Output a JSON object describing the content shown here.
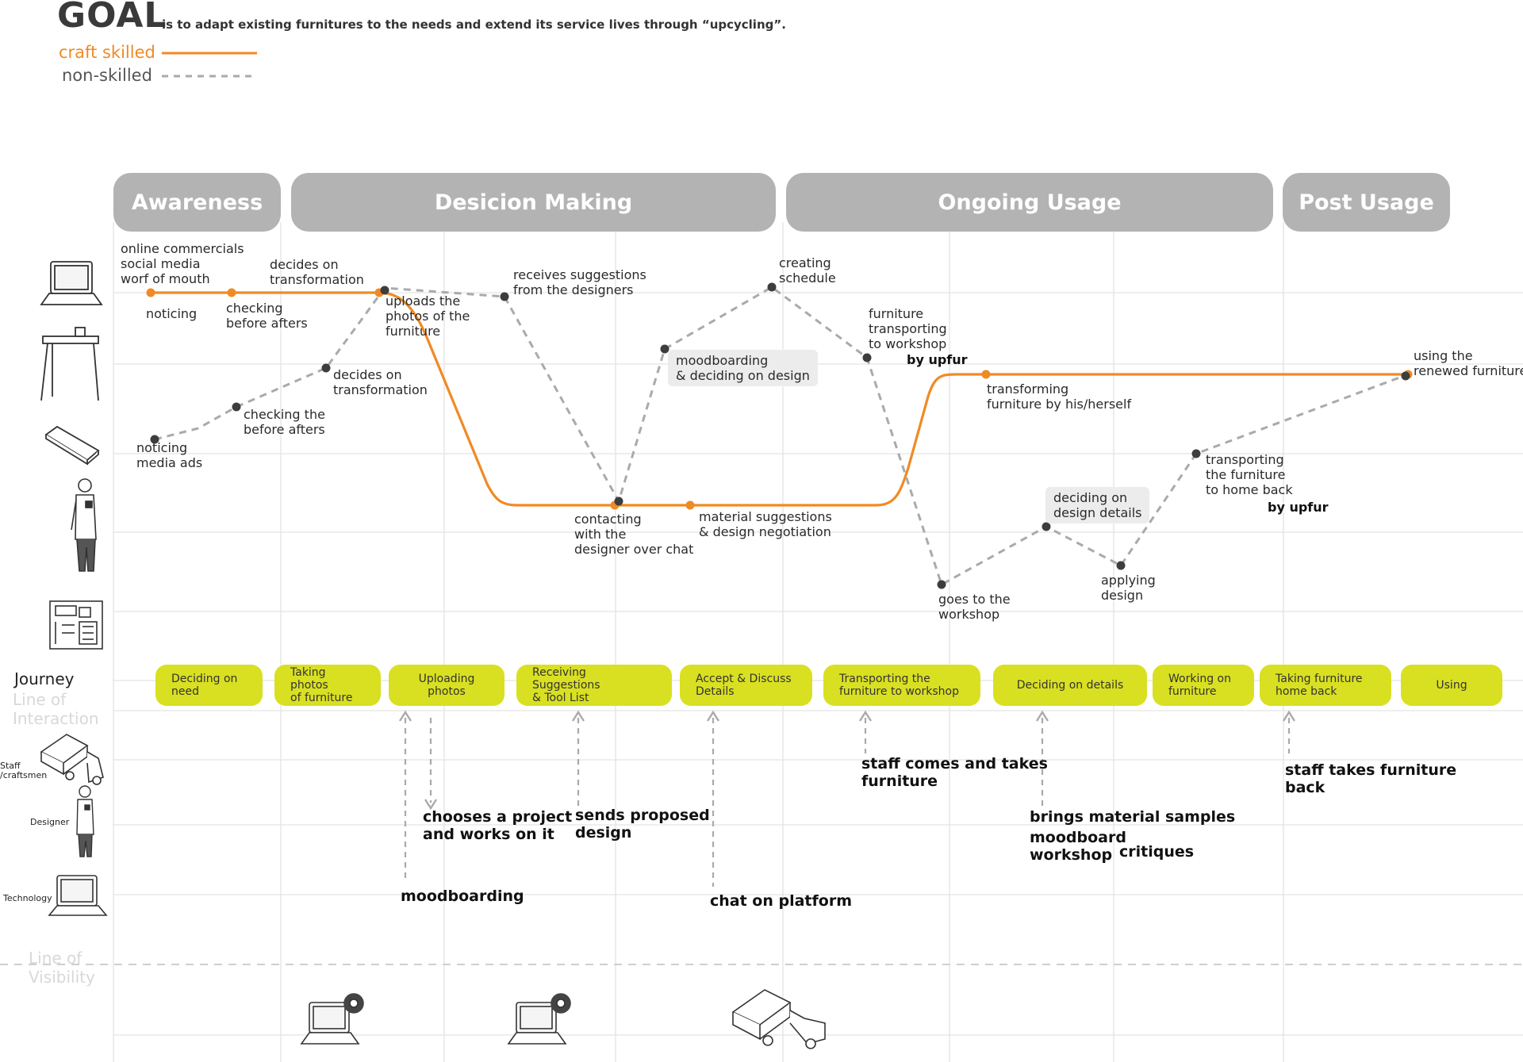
{
  "header": {
    "goal_word": "GOAL",
    "goal_text": "is to adapt existing furnitures to the needs and extend its service lives through “upcycling”.",
    "legend": {
      "craft_label": "craft skilled",
      "non_label": "non-skilled",
      "craft_color": "#f08a24",
      "non_color": "#aaaaaa"
    }
  },
  "phases": [
    "Awareness",
    "Desicion Making",
    "Ongoing Usage",
    "Post Usage"
  ],
  "journey": {
    "craft_labels": [
      "online commercials\nsocial media\nworf of mouth",
      "noticing",
      "checking\nbefore afters",
      "decides on\ntransformation",
      "uploads the\nphotos of the\nfurniture",
      "contacting\nwith the\ndesigner over chat",
      "material suggestions\n& design negotiation",
      "transforming\nfurniture by his/herself",
      "using the\nrenewed furniture"
    ],
    "non_labels": [
      "noticing\nmedia ads",
      "checking the\nbefore afters",
      "decides on\ntransformation",
      "receives suggestions\nfrom the designers",
      "moodboarding\n& deciding on design",
      "creating\nschedule",
      "furniture\ntransporting\nto workshop",
      "by upfur",
      "goes to the\nworkshop",
      "deciding on\ndesign details",
      "applying\ndesign",
      "transporting\nthe furniture\nto home back",
      "by upfur"
    ]
  },
  "lanes": {
    "journey": "Journey",
    "line_of_interaction": "Line of\nInteraction",
    "staff": "Staff\n/craftsmen",
    "designer": "Designer",
    "technology": "Technology",
    "line_of_visibility": "Line of\nVisibility"
  },
  "journey_steps": [
    "Deciding on\nneed",
    "Taking photos\nof furniture",
    "Uploading photos",
    "Receiving Suggestions\n& Tool List",
    "Accept & Discuss\nDetails",
    "Transporting the\nfurniture to workshop",
    "Deciding on details",
    "Working on\nfurniture",
    "Taking furniture\nhome back",
    "Using"
  ],
  "actions": [
    "staff comes and takes\nfurniture",
    "staff takes furniture\nback",
    "chooses a project\nand works on it",
    "sends proposed\ndesign",
    "brings material samples",
    "moodboard\nworkshop",
    "critiques",
    "moodboarding",
    "chat on platform"
  ],
  "icons": [
    "laptop-icon",
    "desk-icon",
    "phone-icon",
    "person-icon",
    "blueprint-icon",
    "truck-icon",
    "laptop-gear-icon"
  ]
}
